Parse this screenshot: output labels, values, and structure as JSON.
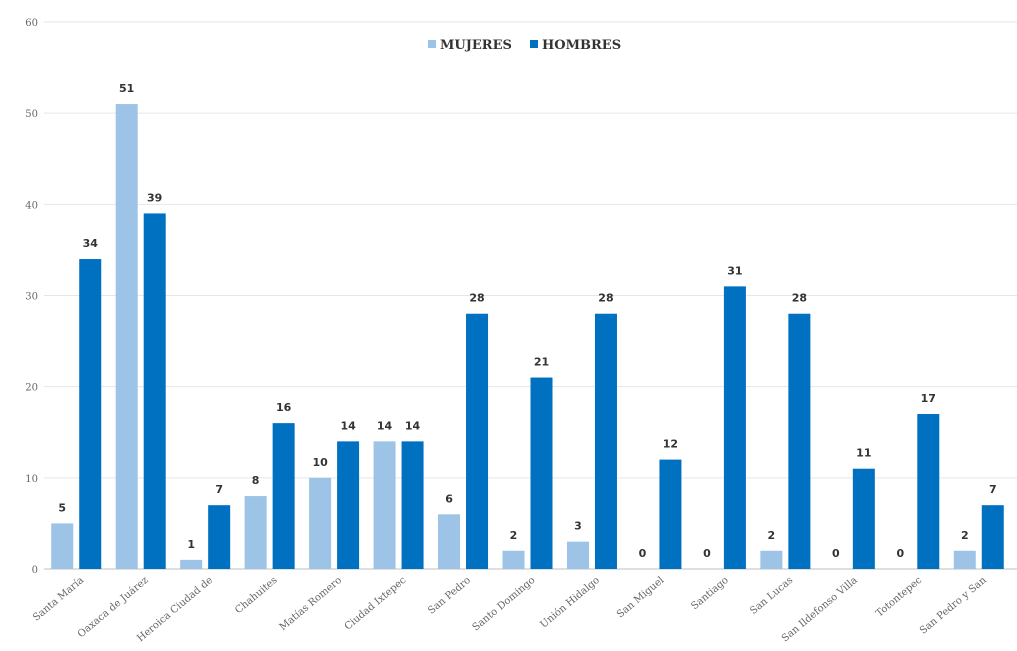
{
  "chart_data": {
    "type": "bar",
    "categories": [
      "Santa María",
      "Oaxaca de Juárez",
      "Heroica Ciudad de",
      "Chahuites",
      "Matías Romero",
      "Ciudad Ixtepec",
      "San Pedro",
      "Santo Domingo",
      "Unión Hidalgo",
      "San Miguel",
      "Santiago",
      "San Lucas",
      "San Ildefonso Villa",
      "Totontepec",
      "San Pedro y San"
    ],
    "series": [
      {
        "name": "MUJERES",
        "color": "#9dc3e6",
        "values": [
          5,
          51,
          1,
          8,
          10,
          14,
          6,
          2,
          3,
          0,
          0,
          2,
          0,
          0,
          2
        ]
      },
      {
        "name": "HOMBRES",
        "color": "#0070c0",
        "values": [
          34,
          39,
          7,
          16,
          14,
          14,
          28,
          21,
          28,
          12,
          31,
          28,
          11,
          17,
          7
        ]
      }
    ],
    "yticks": [
      "0",
      "10",
      "20",
      "30",
      "40",
      "50",
      "60"
    ],
    "ylim": [
      0,
      60
    ],
    "grid": true,
    "legend_position": "top-center",
    "title": "",
    "xlabel": "",
    "ylabel": ""
  }
}
